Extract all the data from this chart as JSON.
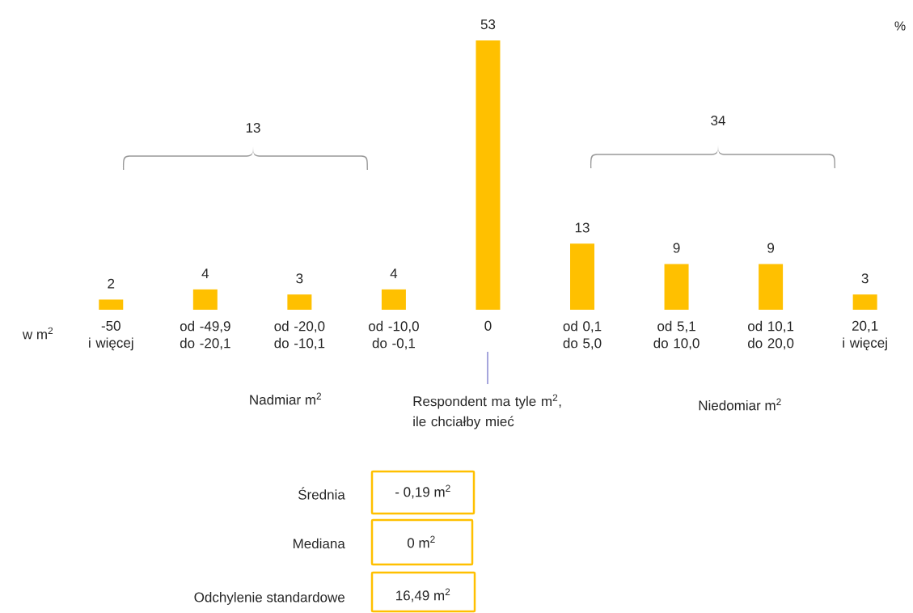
{
  "chart_data": {
    "type": "bar",
    "categories": [
      "-50 i więcej",
      "od -49,9 do -20,1",
      "od -20,0 do -10,1",
      "od -10,0 do -0,1",
      "0",
      "od 0,1 do 5,0",
      "od 5,1 do 10,0",
      "od 10,1 do 20,0",
      "20,1 i więcej"
    ],
    "values": [
      2,
      4,
      3,
      4,
      53,
      13,
      9,
      9,
      3
    ],
    "color": "#ffc000",
    "data_labels": true,
    "xlabel": "w m$^{2}$",
    "ylabel": "%",
    "relative": false,
    "annotations": [
      "13",
      "34",
      "Nadmiar m$^{2}$",
      "Respondent ma tyle m$^{2}$, ile chciałby mieć",
      "Niedomiar m$^{2}$",
      "Średnia",
      "- 0,19 m$^{2}$",
      "Mediana",
      "0 m$^{2}$",
      "Odchylenie standardowe",
      "16,49 m$^{2}$"
    ]
  }
}
